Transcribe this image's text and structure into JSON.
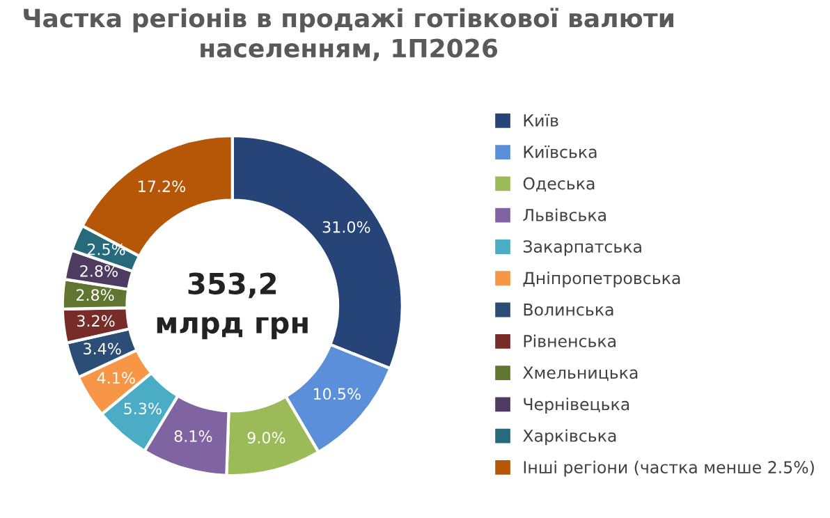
{
  "chart_data": {
    "type": "donut",
    "title": "Частка регіонів в продажі готівкової валюти\nнаселенням, 1П2026",
    "categories": [
      "Київ",
      "Київська",
      "Одеська",
      "Львівська",
      "Закарпатська",
      "Дніпропетровська",
      "Волинська",
      "Рівненська",
      "Хмельницька",
      "Чернівецька",
      "Харківська",
      "Інші регіони (частка менше 2.5%)"
    ],
    "values": [
      31.0,
      10.5,
      9.0,
      8.1,
      5.3,
      4.1,
      3.4,
      3.2,
      2.8,
      2.8,
      2.5,
      17.2
    ],
    "value_labels": [
      "31.0%",
      "10.5%",
      "9.0%",
      "8.1%",
      "5.3%",
      "4.1%",
      "3.4%",
      "3.2%",
      "2.8%",
      "2.8%",
      "2.5%",
      "17.2%"
    ],
    "colors": [
      "#264478",
      "#5b8fd9",
      "#9bbb59",
      "#8064a2",
      "#4bacc6",
      "#f79646",
      "#2c4d75",
      "#772c2a",
      "#5f7530",
      "#4d3b62",
      "#276a7c",
      "#b65708"
    ],
    "annotations": [
      "353,2\nмлрд грн"
    ],
    "legend": "right"
  }
}
